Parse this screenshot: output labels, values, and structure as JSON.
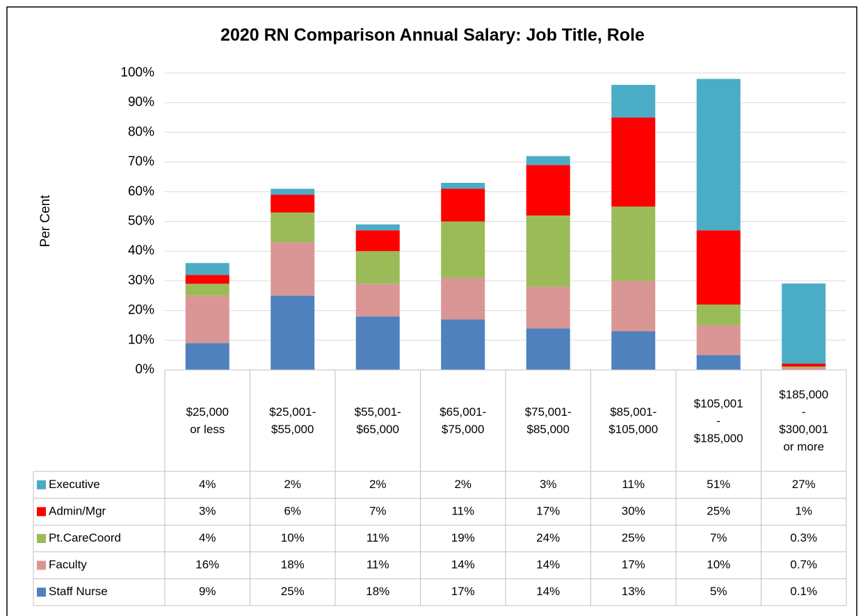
{
  "chart_data": {
    "type": "stacked_bar",
    "title": "2020 RN Comparison Annual Salary: Job Title, Role",
    "ylabel": "Per Cent",
    "categories": [
      "$25,000\nor less",
      "$25,001-\n$55,000",
      "$55,001-\n$65,000",
      "$65,001-\n$75,000",
      "$75,001-\n$85,000",
      "$85,001-\n$105,000",
      "$105,001\n-\n$185,000",
      "$185,000\n-\n$300,001\nor more"
    ],
    "ylim": [
      0,
      100
    ],
    "yticks": [
      {
        "value": 0,
        "label": "0%"
      },
      {
        "value": 10,
        "label": "10%"
      },
      {
        "value": 20,
        "label": "20%"
      },
      {
        "value": 30,
        "label": "30%"
      },
      {
        "value": 40,
        "label": "40%"
      },
      {
        "value": 50,
        "label": "50%"
      },
      {
        "value": 60,
        "label": "60%"
      },
      {
        "value": 70,
        "label": "70%"
      },
      {
        "value": 80,
        "label": "80%"
      },
      {
        "value": 90,
        "label": "90%"
      },
      {
        "value": 100,
        "label": "100%"
      }
    ],
    "grid": true,
    "series": [
      {
        "name": "Staff Nurse",
        "color": "#4f81bd",
        "values": [
          9,
          25,
          18,
          17,
          14,
          13,
          5,
          0.1
        ],
        "value_labels": [
          "9%",
          "25%",
          "18%",
          "17%",
          "14%",
          "13%",
          "5%",
          "0.1%"
        ]
      },
      {
        "name": "Faculty",
        "color": "#da9694",
        "values": [
          16,
          18,
          11,
          14,
          14,
          17,
          10,
          0.7
        ],
        "value_labels": [
          "16%",
          "18%",
          "11%",
          "14%",
          "14%",
          "17%",
          "10%",
          "0.7%"
        ]
      },
      {
        "name": "Pt.CareCoord",
        "color": "#9bbb59",
        "values": [
          4,
          10,
          11,
          19,
          24,
          25,
          7,
          0.3
        ],
        "value_labels": [
          "4%",
          "10%",
          "11%",
          "19%",
          "24%",
          "25%",
          "7%",
          "0.3%"
        ]
      },
      {
        "name": "Admin/Mgr",
        "color": "#ff0000",
        "values": [
          3,
          6,
          7,
          11,
          17,
          30,
          25,
          1
        ],
        "value_labels": [
          "3%",
          "6%",
          "7%",
          "11%",
          "17%",
          "30%",
          "25%",
          "1%"
        ]
      },
      {
        "name": "Executive",
        "color": "#4bacc6",
        "values": [
          4,
          2,
          2,
          2,
          3,
          11,
          51,
          27
        ],
        "value_labels": [
          "4%",
          "2%",
          "2%",
          "2%",
          "3%",
          "11%",
          "51%",
          "27%"
        ]
      }
    ]
  }
}
